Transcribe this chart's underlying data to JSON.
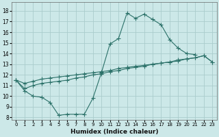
{
  "xlabel": "Humidex (Indice chaleur)",
  "bg_color": "#cce8e8",
  "grid_color": "#aacccc",
  "line_color": "#2a7068",
  "xlim": [
    -0.5,
    23.5
  ],
  "ylim": [
    7.8,
    18.8
  ],
  "yticks": [
    8,
    9,
    10,
    11,
    12,
    13,
    14,
    15,
    16,
    17,
    18
  ],
  "xticks": [
    0,
    1,
    2,
    3,
    4,
    5,
    6,
    7,
    8,
    9,
    10,
    11,
    12,
    13,
    14,
    15,
    16,
    17,
    18,
    19,
    20,
    21,
    22,
    23
  ],
  "line1_x": [
    0,
    1,
    2,
    3,
    4,
    5,
    6,
    7,
    8,
    9,
    10,
    11,
    12,
    13,
    14,
    15,
    16,
    17,
    18,
    19,
    20,
    21
  ],
  "line1_y": [
    11.5,
    10.5,
    10.0,
    9.9,
    9.4,
    8.2,
    8.3,
    8.3,
    8.3,
    9.8,
    12.2,
    14.9,
    15.4,
    17.8,
    17.3,
    17.7,
    17.2,
    16.7,
    15.3,
    14.5,
    14.0,
    13.9
  ],
  "line2_x": [
    0,
    1,
    2,
    3,
    4,
    5,
    6,
    7,
    8,
    9,
    10,
    11,
    12,
    13,
    14,
    15,
    16,
    17,
    18,
    19,
    20,
    21,
    22,
    23
  ],
  "line2_y": [
    11.5,
    10.7,
    11.0,
    11.2,
    11.3,
    11.4,
    11.5,
    11.7,
    11.8,
    12.0,
    12.1,
    12.3,
    12.4,
    12.6,
    12.7,
    12.8,
    13.0,
    13.1,
    13.2,
    13.4,
    13.5,
    13.6,
    13.8,
    13.2
  ],
  "line3_x": [
    0,
    1,
    2,
    3,
    4,
    5,
    6,
    7,
    8,
    9,
    10,
    11,
    12,
    13,
    14,
    15,
    16,
    17,
    18,
    19,
    20,
    21,
    22,
    23
  ],
  "line3_y": [
    11.5,
    11.2,
    11.4,
    11.6,
    11.7,
    11.8,
    11.9,
    12.0,
    12.1,
    12.2,
    12.3,
    12.4,
    12.6,
    12.7,
    12.8,
    12.9,
    13.0,
    13.1,
    13.2,
    13.3,
    13.5,
    13.6,
    13.8,
    13.2
  ]
}
